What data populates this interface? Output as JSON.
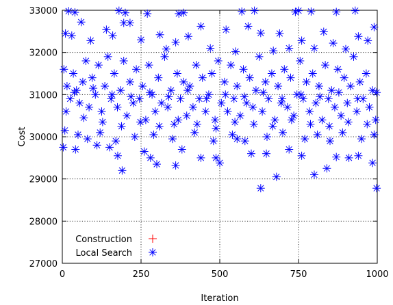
{
  "chart_data": {
    "type": "scatter",
    "xlabel": "Iteration",
    "ylabel": "Cost",
    "xlim": [
      0,
      1000
    ],
    "ylim": [
      27000,
      33000
    ],
    "xticks": [
      "0",
      "250",
      "500",
      "750",
      "1000"
    ],
    "yticks": [
      "27000",
      "28000",
      "29000",
      "30000",
      "31000",
      "32000",
      "33000"
    ],
    "grid": true,
    "legend": "bottom-left",
    "series": [
      {
        "name": "Construction",
        "marker": "plus",
        "color": "#ff0000",
        "points": []
      },
      {
        "name": "Local Search",
        "marker": "asterisk",
        "color": "#0000ff",
        "points": [
          [
            20,
            32980
          ],
          [
            40,
            32950
          ],
          [
            180,
            32990
          ],
          [
            200,
            32940
          ],
          [
            270,
            32920
          ],
          [
            370,
            32920
          ],
          [
            385,
            32940
          ],
          [
            570,
            32970
          ],
          [
            610,
            32990
          ],
          [
            740,
            32960
          ],
          [
            750,
            32990
          ],
          [
            790,
            32970
          ],
          [
            870,
            32960
          ],
          [
            930,
            32990
          ],
          [
            10,
            32450
          ],
          [
            30,
            32400
          ],
          [
            60,
            32720
          ],
          [
            90,
            32280
          ],
          [
            140,
            32540
          ],
          [
            160,
            32400
          ],
          [
            195,
            32700
          ],
          [
            215,
            32700
          ],
          [
            250,
            32300
          ],
          [
            310,
            32420
          ],
          [
            330,
            32080
          ],
          [
            360,
            32240
          ],
          [
            400,
            32380
          ],
          [
            440,
            32620
          ],
          [
            470,
            32100
          ],
          [
            520,
            32540
          ],
          [
            550,
            32020
          ],
          [
            590,
            32620
          ],
          [
            630,
            32460
          ],
          [
            670,
            32040
          ],
          [
            690,
            32450
          ],
          [
            720,
            32100
          ],
          [
            760,
            32280
          ],
          [
            800,
            32100
          ],
          [
            830,
            32490
          ],
          [
            860,
            32220
          ],
          [
            900,
            32080
          ],
          [
            940,
            32380
          ],
          [
            970,
            32280
          ],
          [
            990,
            32600
          ],
          [
            5,
            31600
          ],
          [
            15,
            31200
          ],
          [
            25,
            30900
          ],
          [
            35,
            31500
          ],
          [
            45,
            31100
          ],
          [
            55,
            30800
          ],
          [
            65,
            31300
          ],
          [
            75,
            31800
          ],
          [
            85,
            30700
          ],
          [
            95,
            31400
          ],
          [
            105,
            31000
          ],
          [
            115,
            31700
          ],
          [
            125,
            30600
          ],
          [
            135,
            31200
          ],
          [
            145,
            31900
          ],
          [
            155,
            30900
          ],
          [
            165,
            31500
          ],
          [
            175,
            30700
          ],
          [
            185,
            31100
          ],
          [
            195,
            31800
          ],
          [
            205,
            30500
          ],
          [
            215,
            31300
          ],
          [
            225,
            30800
          ],
          [
            235,
            31600
          ],
          [
            245,
            30900
          ],
          [
            255,
            31200
          ],
          [
            265,
            30400
          ],
          [
            275,
            31700
          ],
          [
            285,
            31000
          ],
          [
            295,
            30600
          ],
          [
            305,
            31400
          ],
          [
            315,
            30800
          ],
          [
            325,
            31900
          ],
          [
            335,
            30700
          ],
          [
            345,
            31100
          ],
          [
            355,
            30300
          ],
          [
            365,
            31500
          ],
          [
            375,
            30900
          ],
          [
            385,
            31300
          ],
          [
            395,
            30500
          ],
          [
            405,
            31200
          ],
          [
            415,
            30700
          ],
          [
            425,
            31700
          ],
          [
            435,
            30900
          ],
          [
            445,
            31400
          ],
          [
            455,
            30600
          ],
          [
            465,
            31000
          ],
          [
            475,
            31500
          ],
          [
            485,
            30400
          ],
          [
            495,
            31800
          ],
          [
            505,
            30800
          ],
          [
            515,
            31300
          ],
          [
            525,
            30600
          ],
          [
            535,
            31700
          ],
          [
            545,
            30900
          ],
          [
            555,
            31200
          ],
          [
            565,
            30500
          ],
          [
            575,
            31600
          ],
          [
            585,
            30800
          ],
          [
            595,
            31400
          ],
          [
            605,
            30700
          ],
          [
            615,
            31100
          ],
          [
            625,
            31900
          ],
          [
            635,
            30600
          ],
          [
            645,
            31300
          ],
          [
            655,
            30900
          ],
          [
            665,
            31500
          ],
          [
            675,
            30400
          ],
          [
            685,
            31200
          ],
          [
            695,
            30800
          ],
          [
            705,
            31600
          ],
          [
            715,
            30700
          ],
          [
            725,
            31400
          ],
          [
            735,
            30500
          ],
          [
            745,
            31000
          ],
          [
            755,
            31800
          ],
          [
            765,
            30900
          ],
          [
            775,
            31300
          ],
          [
            785,
            30600
          ],
          [
            795,
            31500
          ],
          [
            805,
            30800
          ],
          [
            815,
            31200
          ],
          [
            825,
            30400
          ],
          [
            835,
            31700
          ],
          [
            845,
            30900
          ],
          [
            855,
            31100
          ],
          [
            865,
            30700
          ],
          [
            875,
            31600
          ],
          [
            885,
            30500
          ],
          [
            895,
            31400
          ],
          [
            905,
            30800
          ],
          [
            915,
            31200
          ],
          [
            925,
            31900
          ],
          [
            935,
            30600
          ],
          [
            945,
            31300
          ],
          [
            955,
            30900
          ],
          [
            965,
            31500
          ],
          [
            975,
            30700
          ],
          [
            985,
            31100
          ],
          [
            995,
            30400
          ],
          [
            12,
            30600
          ],
          [
            38,
            31050
          ],
          [
            68,
            30450
          ],
          [
            98,
            31150
          ],
          [
            128,
            30350
          ],
          [
            158,
            31000
          ],
          [
            188,
            30250
          ],
          [
            218,
            30950
          ],
          [
            248,
            30350
          ],
          [
            278,
            31050
          ],
          [
            308,
            30250
          ],
          [
            338,
            30950
          ],
          [
            368,
            30400
          ],
          [
            398,
            31100
          ],
          [
            428,
            30300
          ],
          [
            458,
            30900
          ],
          [
            488,
            30200
          ],
          [
            518,
            31000
          ],
          [
            548,
            30350
          ],
          [
            578,
            30950
          ],
          [
            608,
            30300
          ],
          [
            638,
            31050
          ],
          [
            668,
            30250
          ],
          [
            698,
            30900
          ],
          [
            728,
            30400
          ],
          [
            758,
            31000
          ],
          [
            788,
            30300
          ],
          [
            818,
            30950
          ],
          [
            848,
            30250
          ],
          [
            878,
            31050
          ],
          [
            908,
            30350
          ],
          [
            938,
            30900
          ],
          [
            968,
            30300
          ],
          [
            998,
            31050
          ],
          [
            3,
            29750
          ],
          [
            42,
            29700
          ],
          [
            110,
            29800
          ],
          [
            150,
            29750
          ],
          [
            176,
            29550
          ],
          [
            190,
            29200
          ],
          [
            260,
            29650
          ],
          [
            280,
            29500
          ],
          [
            300,
            29350
          ],
          [
            360,
            29320
          ],
          [
            380,
            29700
          ],
          [
            440,
            29500
          ],
          [
            488,
            29500
          ],
          [
            500,
            29380
          ],
          [
            555,
            29950
          ],
          [
            600,
            29600
          ],
          [
            630,
            28780
          ],
          [
            648,
            29600
          ],
          [
            680,
            29050
          ],
          [
            720,
            29700
          ],
          [
            760,
            29550
          ],
          [
            800,
            29100
          ],
          [
            840,
            29250
          ],
          [
            870,
            29520
          ],
          [
            910,
            29500
          ],
          [
            940,
            29550
          ],
          [
            985,
            29380
          ],
          [
            998,
            28780
          ],
          [
            8,
            30150
          ],
          [
            50,
            30050
          ],
          [
            80,
            29950
          ],
          [
            120,
            30100
          ],
          [
            170,
            29900
          ],
          [
            230,
            30000
          ],
          [
            290,
            30050
          ],
          [
            350,
            29950
          ],
          [
            420,
            30100
          ],
          [
            480,
            29900
          ],
          [
            540,
            30050
          ],
          [
            580,
            29900
          ],
          [
            650,
            30000
          ],
          [
            700,
            30100
          ],
          [
            770,
            29950
          ],
          [
            810,
            30050
          ],
          [
            850,
            29900
          ],
          [
            890,
            30100
          ],
          [
            950,
            29950
          ],
          [
            990,
            30050
          ]
        ]
      }
    ]
  }
}
